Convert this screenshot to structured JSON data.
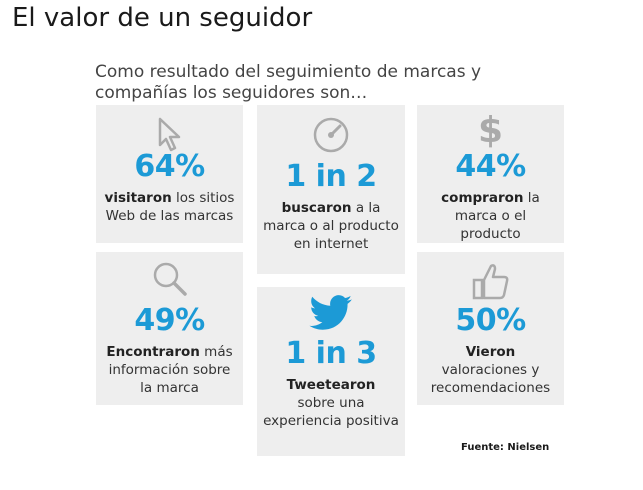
{
  "title": "El valor de un seguidor",
  "subtitle": "Como resultado del seguimiento de marcas y compañías los seguidores son…",
  "accent_color": "#1c9ad6",
  "icon_color": "#aaaaaa",
  "cards": [
    {
      "icon": "cursor-icon",
      "stat": "64%",
      "bold": "visitaron",
      "rest": " los sitios Web de las marcas"
    },
    {
      "icon": "compass-icon",
      "stat": "1 in 2",
      "bold": "buscaron",
      "rest": " a la marca o al producto en internet"
    },
    {
      "icon": "dollar-icon",
      "stat": "44%",
      "bold": "compraron",
      "rest": " la marca o el producto"
    },
    {
      "icon": "magnifier-icon",
      "stat": "49%",
      "bold": "Encontraron",
      "rest": " más información sobre la marca"
    },
    {
      "icon": "twitter-bird-icon",
      "stat": "1 in 3",
      "bold": "Tweetearon",
      "rest": " sobre una experiencia positiva"
    },
    {
      "icon": "thumbs-up-icon",
      "stat": "50%",
      "bold": "Vieron",
      "rest": " valoraciones y recomendaciones"
    }
  ],
  "source": "Fuente: Nielsen"
}
